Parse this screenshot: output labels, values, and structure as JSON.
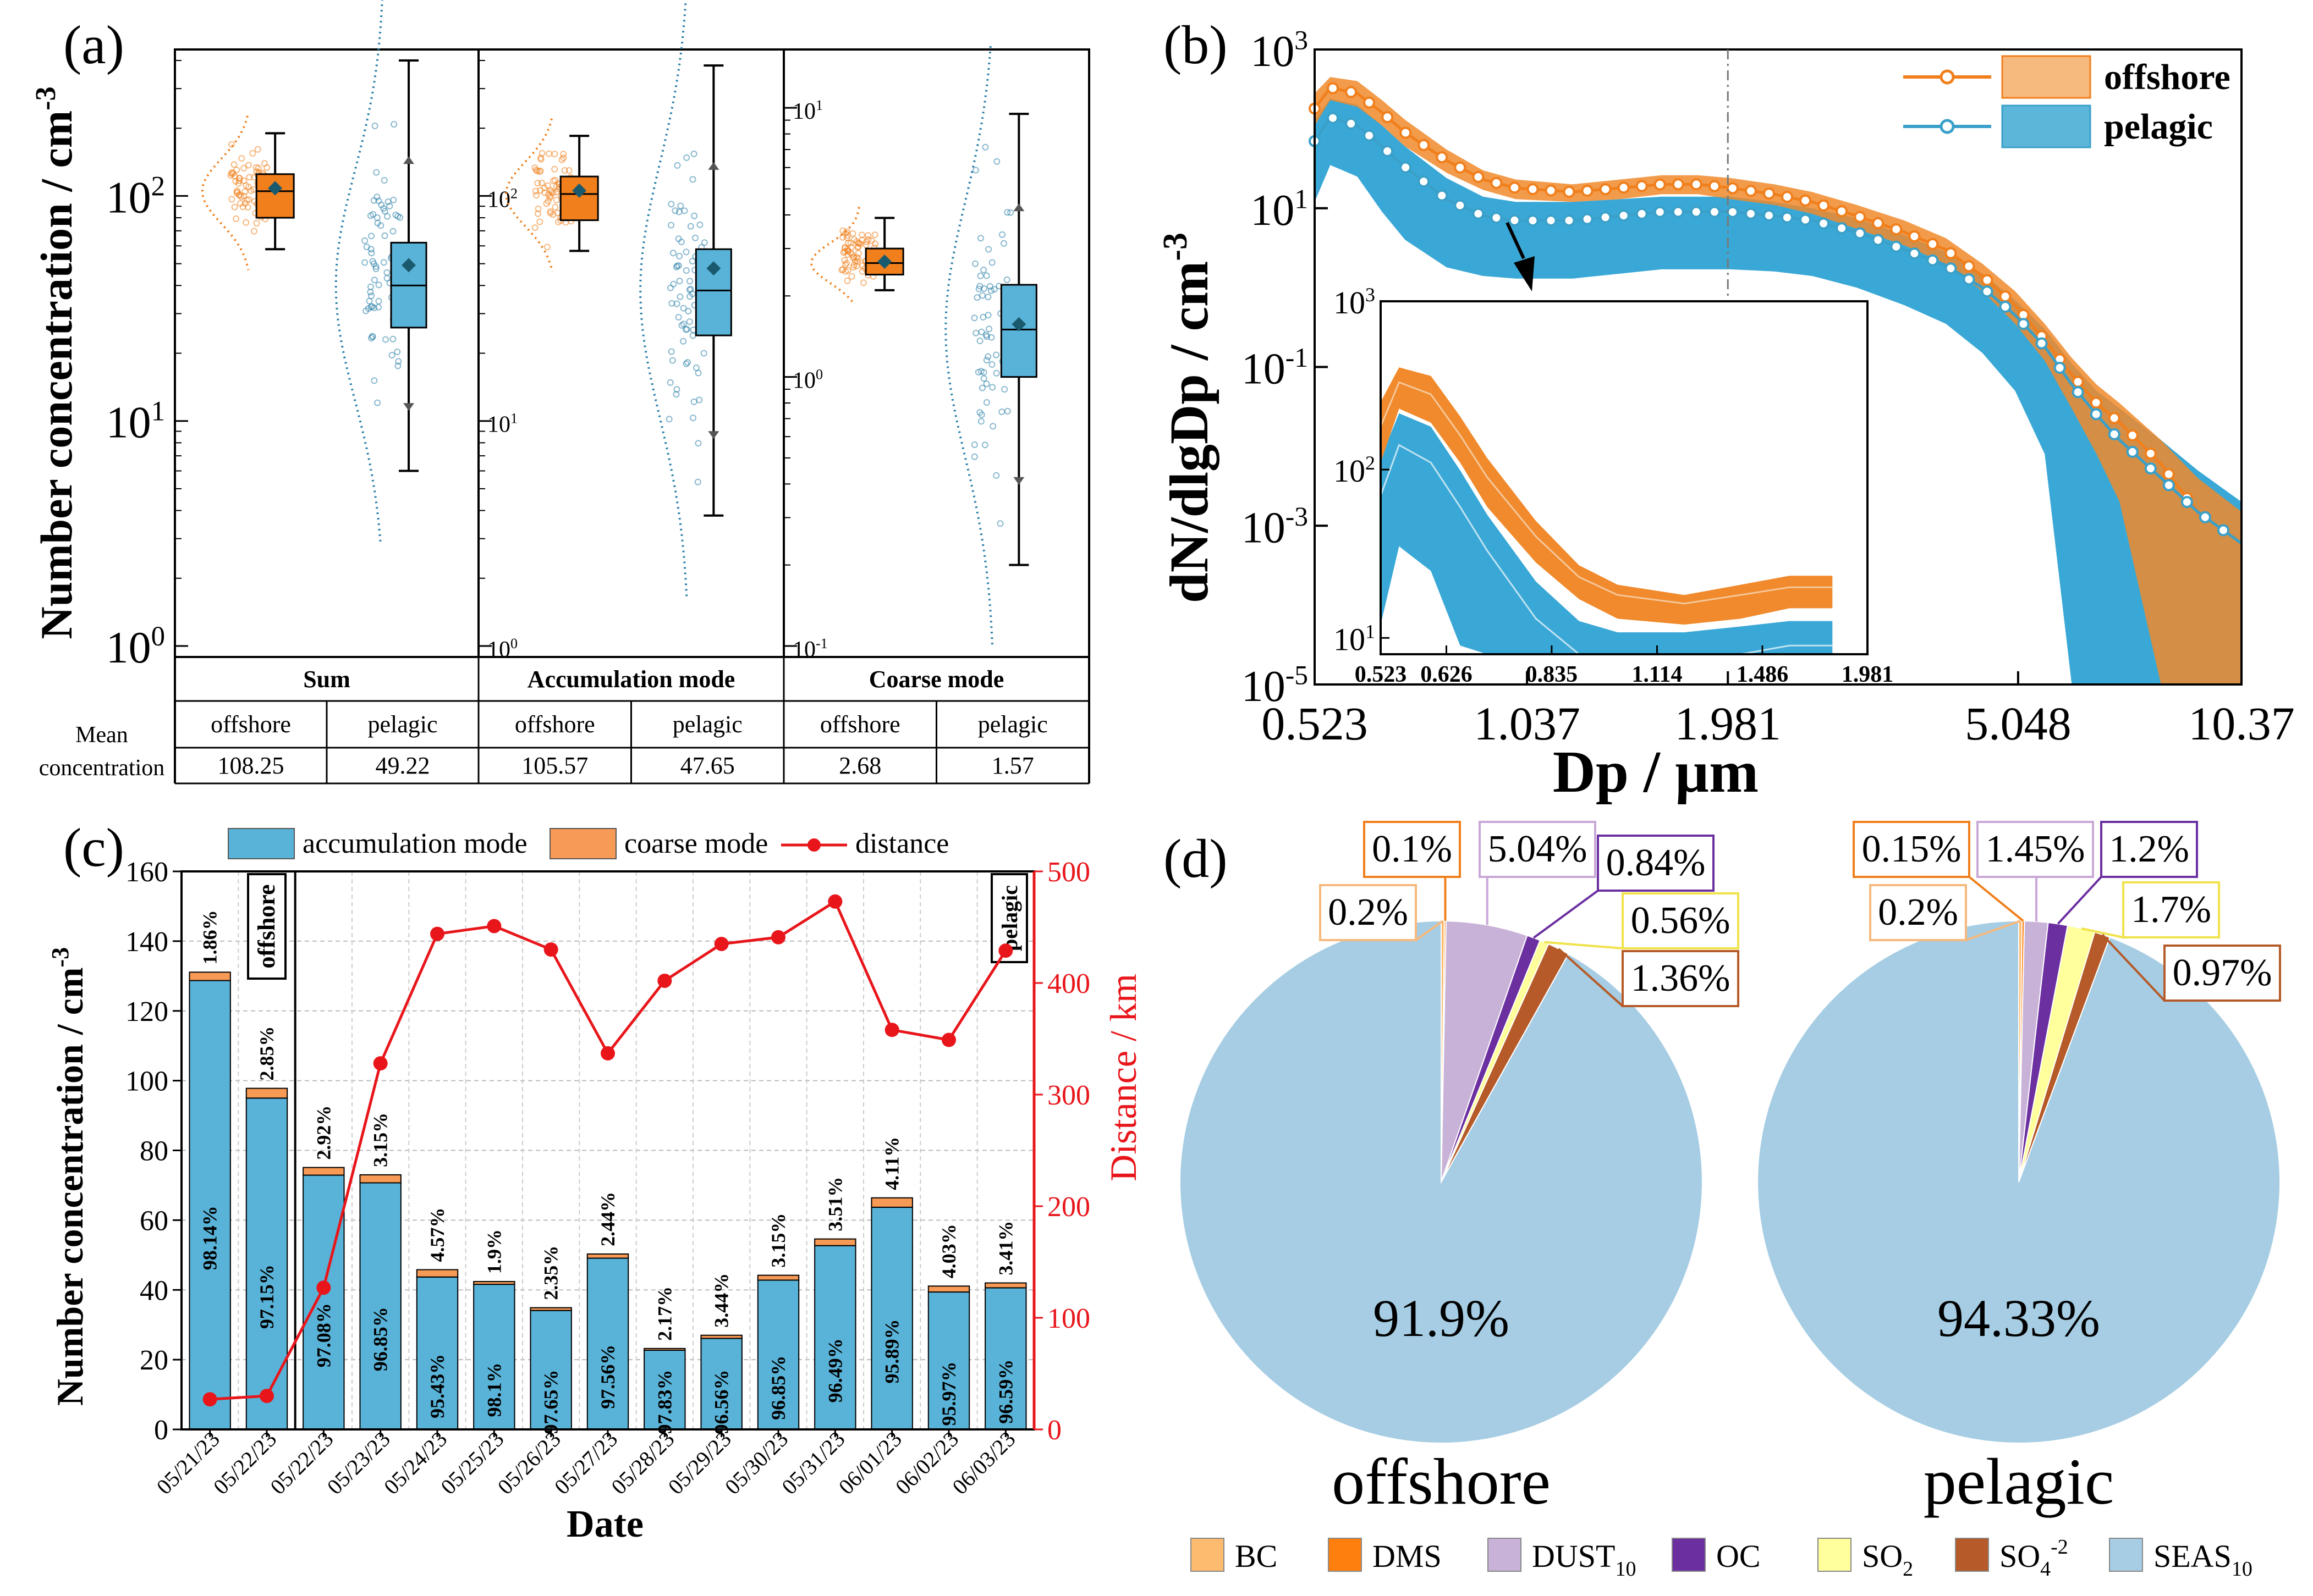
{
  "colors": {
    "offshore": "#f07f1c",
    "offshore_fill": "#f6b97e",
    "pelagic": "#3aa0c9",
    "pelagic_fill": "#5bb6d9",
    "accum_bar": "#59b3d8",
    "coarse_bar": "#f79a55",
    "distance": "#e8161b",
    "pie_bc": "#fcbb6e",
    "pie_dms": "#ff7f0e",
    "pie_dust": "#c9b2d8",
    "pie_oc": "#6b2fa0",
    "pie_so2": "#ffff9b",
    "pie_so4": "#b55a28",
    "pie_seas": "#a6cde3"
  },
  "panel_a": {
    "label": "(a)",
    "ylabel": "Number concentration / cm",
    "ylabel_sup": "-3",
    "row_label_1": "Mean",
    "row_label_2": "concentration",
    "groups": [
      {
        "title": "Sum",
        "offshore_label": "offshore",
        "pelagic_label": "pelagic",
        "offshore_mean": "108.25",
        "pelagic_mean": "49.22"
      },
      {
        "title": "Accumulation mode",
        "offshore_label": "offshore",
        "pelagic_label": "pelagic",
        "offshore_mean": "105.57",
        "pelagic_mean": "47.65"
      },
      {
        "title": "Coarse mode",
        "offshore_label": "offshore",
        "pelagic_label": "pelagic",
        "offshore_mean": "2.68",
        "pelagic_mean": "1.57"
      }
    ],
    "axes": [
      {
        "ticks": [
          {
            "base": "10",
            "exp": "0"
          },
          {
            "base": "10",
            "exp": "1"
          },
          {
            "base": "10",
            "exp": "2"
          }
        ],
        "range": [
          1,
          400
        ]
      },
      {
        "ticks": [
          {
            "base": "10",
            "exp": "0"
          },
          {
            "base": "10",
            "exp": "1"
          },
          {
            "base": "10",
            "exp": "2"
          }
        ],
        "range": [
          1,
          400
        ]
      },
      {
        "ticks": [
          {
            "base": "10",
            "exp": "-1"
          },
          {
            "base": "10",
            "exp": "0"
          },
          {
            "base": "10",
            "exp": "1"
          }
        ],
        "range": [
          0.1,
          15
        ]
      }
    ]
  },
  "chart_data": [
    {
      "type": "box",
      "panel": "a",
      "scale": "log",
      "groups": [
        {
          "name": "Sum",
          "offshore": {
            "whisker_low": 58,
            "q1": 80,
            "median": 105,
            "q3": 125,
            "whisker_high": 190,
            "mean": 108.25
          },
          "pelagic": {
            "whisker_low": 6,
            "q1": 26,
            "median": 40,
            "q3": 62,
            "whisker_high": 400,
            "mean": 49.22
          }
        },
        {
          "name": "Accumulation mode",
          "offshore": {
            "whisker_low": 57,
            "q1": 78,
            "median": 102,
            "q3": 122,
            "whisker_high": 185,
            "mean": 105.57
          },
          "pelagic": {
            "whisker_low": 3.8,
            "q1": 24,
            "median": 38,
            "q3": 58,
            "whisker_high": 380,
            "mean": 47.65
          }
        },
        {
          "name": "Coarse mode",
          "offshore": {
            "whisker_low": 2.1,
            "q1": 2.4,
            "median": 2.65,
            "q3": 3.0,
            "whisker_high": 3.9,
            "mean": 2.68
          },
          "pelagic": {
            "whisker_low": 0.2,
            "q1": 1.0,
            "median": 1.5,
            "q3": 2.2,
            "whisker_high": 9.5,
            "mean": 1.57
          }
        }
      ]
    },
    {
      "type": "line",
      "panel": "b",
      "label": "(b)",
      "scale": "log-log",
      "xlabel": "Dp / µm",
      "ylabel": "dN/dlgDp / cm",
      "ylabel_sup": "-3",
      "xticks": [
        "0.523",
        "1.037",
        "1.981",
        "5.048",
        "10.37"
      ],
      "xtick_values": [
        0.523,
        1.037,
        1.981,
        5.048,
        10.37
      ],
      "yticks": [
        {
          "base": "10",
          "exp": "-5"
        },
        {
          "base": "10",
          "exp": "-3"
        },
        {
          "base": "10",
          "exp": "-1"
        },
        {
          "base": "10",
          "exp": "1"
        },
        {
          "base": "10",
          "exp": "3"
        }
      ],
      "xlim": [
        0.523,
        10.37
      ],
      "ylim": [
        1e-05,
        1000
      ],
      "vline_x": 1.981,
      "x": [
        0.523,
        0.55,
        0.6,
        0.65,
        0.7,
        0.8,
        0.9,
        1.0,
        1.2,
        1.4,
        1.6,
        1.8,
        2.0,
        2.3,
        2.6,
        3.0,
        3.5,
        4.0,
        4.5,
        5.0,
        5.5,
        6.0,
        6.5,
        7.0,
        8.0,
        9.0,
        10.37
      ],
      "series": [
        {
          "name": "offshore",
          "values": [
            180,
            330,
            280,
            160,
            90,
            40,
            23,
            18,
            16,
            18,
            20,
            20,
            18,
            15,
            12,
            8,
            5,
            3,
            1.4,
            0.6,
            0.22,
            0.08,
            0.035,
            0.02,
            0.006,
            0.0015,
            0.0006
          ],
          "upper": [
            280,
            450,
            400,
            230,
            130,
            55,
            30,
            23,
            20,
            23,
            26,
            26,
            24,
            20,
            16,
            11,
            7,
            4.2,
            2,
            0.9,
            0.35,
            0.13,
            0.06,
            0.035,
            0.012,
            0.004,
            0.0015
          ],
          "lower": [
            110,
            230,
            190,
            110,
            60,
            28,
            17,
            13,
            12,
            13,
            15,
            15,
            13,
            11,
            8.5,
            5.5,
            3.4,
            2,
            0.9,
            0.35,
            0.12,
            0.03,
            0.008,
            0.002,
            1e-05,
            1e-05,
            1e-05
          ]
        },
        {
          "name": "pelagic",
          "values": [
            70,
            140,
            110,
            60,
            33,
            13,
            8,
            7,
            7,
            8,
            9,
            9,
            9,
            8,
            7,
            5,
            3,
            1.9,
            1,
            0.45,
            0.18,
            0.06,
            0.025,
            0.012,
            0.004,
            0.0015,
            0.0006
          ],
          "upper": [
            130,
            240,
            200,
            110,
            60,
            24,
            14,
            12,
            12,
            13,
            14,
            14,
            14,
            12,
            10,
            7.5,
            4.6,
            2.8,
            1.5,
            0.7,
            0.3,
            0.11,
            0.05,
            0.03,
            0.012,
            0.005,
            0.002
          ],
          "lower": [
            12,
            35,
            25,
            9,
            4,
            1.8,
            1.4,
            1.3,
            1.3,
            1.5,
            1.7,
            1.7,
            1.7,
            1.6,
            1.4,
            1,
            0.6,
            0.35,
            0.15,
            0.05,
            0.008,
            1e-05,
            1e-05,
            1e-05,
            1e-05,
            1e-05,
            1e-05
          ]
        }
      ],
      "legend": [
        "offshore",
        "pelagic"
      ],
      "inset": {
        "xticks": [
          "0.523",
          "0.626",
          "0.835",
          "1.114",
          "1.486",
          "1.981"
        ],
        "xtick_values": [
          0.523,
          0.626,
          0.835,
          1.114,
          1.486,
          1.981
        ],
        "yticks": [
          {
            "base": "10",
            "exp": "1"
          },
          {
            "base": "10",
            "exp": "2"
          },
          {
            "base": "10",
            "exp": "3"
          }
        ],
        "xlim": [
          0.523,
          1.981
        ],
        "ylim": [
          8,
          1000
        ]
      }
    },
    {
      "type": "bar",
      "panel": "c",
      "label": "(c)",
      "stacked": true,
      "xlabel": "Date",
      "ylabel": "Number concentration / cm",
      "ylabel_sup": "-3",
      "y2label": "Distance / km",
      "categories": [
        "05/21/23",
        "05/22/23",
        "05/22/23",
        "05/23/23",
        "05/24/23",
        "05/25/23",
        "05/26/23",
        "05/27/23",
        "05/28/23",
        "05/29/23",
        "05/30/23",
        "05/31/23",
        "06/01/23",
        "06/02/23",
        "06/03/23"
      ],
      "ylim": [
        0,
        160
      ],
      "y2lim": [
        0,
        500
      ],
      "yticks": [
        "0",
        "20",
        "40",
        "60",
        "80",
        "100",
        "120",
        "140",
        "160"
      ],
      "y2ticks": [
        "0",
        "100",
        "200",
        "300",
        "400",
        "500"
      ],
      "series": [
        {
          "name": "accumulation mode",
          "values": [
            128.7,
            95.0,
            72.9,
            70.7,
            43.7,
            41.6,
            34.1,
            49.1,
            22.7,
            26.1,
            42.8,
            52.7,
            63.7,
            39.4,
            40.6
          ]
        },
        {
          "name": "coarse mode",
          "values": [
            2.4,
            2.8,
            2.2,
            2.3,
            2.1,
            0.8,
            0.8,
            1.2,
            0.5,
            0.9,
            1.4,
            1.9,
            2.7,
            1.7,
            1.4
          ]
        },
        {
          "name": "distance",
          "axis": "right",
          "values": [
            27,
            30,
            127,
            328,
            444,
            451,
            430,
            337,
            402,
            435,
            441,
            473,
            358,
            349,
            429
          ]
        }
      ],
      "accum_pct_labels": [
        "98.14%",
        "97.15%",
        "97.08%",
        "96.85%",
        "95.43%",
        "98.1%",
        "97.65%",
        "97.56%",
        "97.83%",
        "96.56%",
        "96.85%",
        "96.49%",
        "95.89%",
        "95.97%",
        "96.59%"
      ],
      "coarse_pct_labels": [
        "1.86%",
        "2.85%",
        "2.92%",
        "3.15%",
        "4.57%",
        "1.9%",
        "2.35%",
        "2.44%",
        "2.17%",
        "3.44%",
        "3.15%",
        "3.51%",
        "4.11%",
        "4.03%",
        "3.41%"
      ],
      "region_labels": [
        "offshore",
        "pelagic"
      ],
      "legend": [
        "accumulation mode",
        "coarse mode",
        "distance"
      ]
    },
    {
      "type": "pie",
      "panel": "d",
      "label": "(d)",
      "categories": [
        "BC",
        "DMS",
        "DUST10",
        "OC",
        "SO2",
        "SO4-2",
        "SEAS10"
      ],
      "pies": [
        {
          "name": "offshore",
          "values": [
            0.2,
            0.1,
            5.04,
            0.84,
            0.56,
            1.36,
            91.9
          ],
          "labels": [
            "0.2%",
            "0.1%",
            "5.04%",
            "0.84%",
            "0.56%",
            "1.36%",
            "91.9%"
          ]
        },
        {
          "name": "pelagic",
          "values": [
            0.2,
            0.15,
            1.45,
            1.2,
            1.7,
            0.97,
            94.33
          ],
          "labels": [
            "0.2%",
            "0.15%",
            "1.45%",
            "1.2%",
            "1.7%",
            "0.97%",
            "94.33%"
          ]
        }
      ],
      "legend": [
        {
          "base": "BC",
          "sub": "",
          "sup": ""
        },
        {
          "base": "DMS",
          "sub": "",
          "sup": ""
        },
        {
          "base": "DUST",
          "sub": "10",
          "sup": ""
        },
        {
          "base": "OC",
          "sub": "",
          "sup": ""
        },
        {
          "base": "SO",
          "sub": "2",
          "sup": ""
        },
        {
          "base": "SO",
          "sub": "4",
          "sup": "-2"
        },
        {
          "base": "SEAS",
          "sub": "10",
          "sup": ""
        }
      ]
    }
  ]
}
